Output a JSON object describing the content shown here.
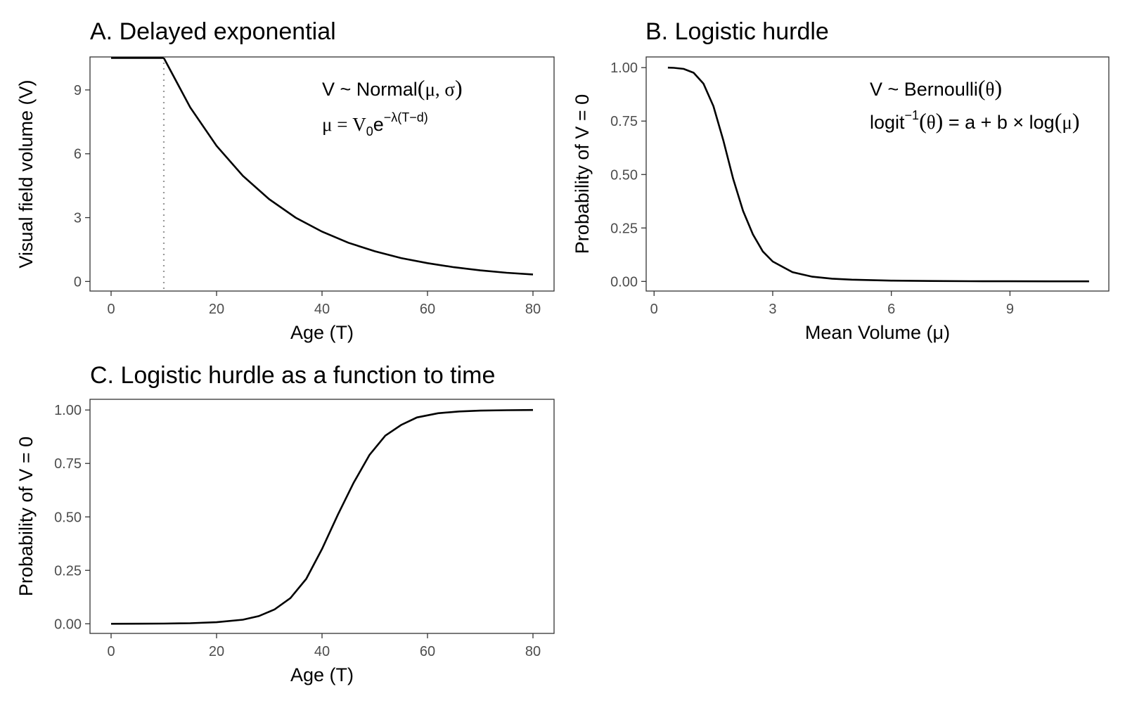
{
  "chart_data": [
    {
      "id": "A",
      "type": "line",
      "title": "A. Delayed exponential",
      "xlabel": "Age (T)",
      "ylabel": "Visual field volume (V)",
      "xlim": [
        -4,
        84
      ],
      "ylim": [
        -0.45,
        10.55
      ],
      "xticks": [
        0,
        20,
        40,
        60,
        80
      ],
      "xtick_labels": [
        "0",
        "20",
        "40",
        "60",
        "80"
      ],
      "yticks": [
        0,
        3,
        6,
        9
      ],
      "ytick_labels": [
        "0",
        "3",
        "6",
        "9"
      ],
      "grid": false,
      "series": [
        {
          "style": "flat",
          "color": "#E06C8A",
          "x": [
            0,
            10
          ],
          "y": [
            10.5,
            10.5
          ]
        },
        {
          "style": "curve",
          "color": "#000000",
          "x": [
            10,
            15,
            20,
            25,
            30,
            35,
            40,
            45,
            50,
            55,
            60,
            65,
            70,
            75,
            80
          ],
          "y": [
            10.5,
            8.18,
            6.37,
            4.96,
            3.86,
            3.0,
            2.34,
            1.82,
            1.42,
            1.1,
            0.86,
            0.67,
            0.52,
            0.41,
            0.33
          ]
        }
      ],
      "reference_line": {
        "orientation": "vertical",
        "x": 10,
        "style": "dotted",
        "color": "#999999"
      },
      "annotation": {
        "line1": {
          "a": "V ~ Normal",
          "b": "μ, σ",
          "open": "(",
          "close": ")"
        },
        "line2": {
          "a": "μ = V",
          "sub": "0",
          "b": "e",
          "sup": "−λ(T−d)"
        }
      }
    },
    {
      "id": "B",
      "type": "line",
      "title": "B. Logistic hurdle",
      "xlabel": "Mean Volume (μ)",
      "ylabel": "Probability of V = 0",
      "xlim": [
        -0.2,
        11.5
      ],
      "ylim": [
        -0.045,
        1.05
      ],
      "xticks": [
        0,
        3,
        6,
        9
      ],
      "xtick_labels": [
        "0",
        "3",
        "6",
        "9"
      ],
      "yticks": [
        0,
        0.25,
        0.5,
        0.75,
        1.0
      ],
      "ytick_labels": [
        "0.00",
        "0.25",
        "0.50",
        "0.75",
        "1.00"
      ],
      "grid": false,
      "series": [
        {
          "style": "curve",
          "color": "#000000",
          "x": [
            0.35,
            0.5,
            0.75,
            1.0,
            1.25,
            1.5,
            1.75,
            2.0,
            2.25,
            2.5,
            2.75,
            3.0,
            3.5,
            4.0,
            4.5,
            5.0,
            6.0,
            7.0,
            8.0,
            9.0,
            10.0,
            11.0
          ],
          "y": [
            1.0,
            0.999,
            0.994,
            0.976,
            0.925,
            0.82,
            0.66,
            0.48,
            0.33,
            0.22,
            0.14,
            0.093,
            0.043,
            0.022,
            0.013,
            0.0082,
            0.0038,
            0.0019,
            0.0011,
            0.0006,
            0.0004,
            0.0003
          ]
        }
      ],
      "annotation": {
        "line1": {
          "a": "V ~ Bernoulli",
          "b": "θ",
          "open": "(",
          "close": ")"
        },
        "line2": {
          "a": "logit",
          "sup": "−1",
          "b": "θ",
          "c": " = a + b × log",
          "d": "μ",
          "open": "(",
          "close": ")"
        }
      }
    },
    {
      "id": "C",
      "type": "line",
      "title": "C. Logistic hurdle as a function to time",
      "xlabel": "Age (T)",
      "ylabel": "Probability of V = 0",
      "xlim": [
        -4,
        84
      ],
      "ylim": [
        -0.045,
        1.05
      ],
      "xticks": [
        0,
        20,
        40,
        60,
        80
      ],
      "xtick_labels": [
        "0",
        "20",
        "40",
        "60",
        "80"
      ],
      "yticks": [
        0,
        0.25,
        0.5,
        0.75,
        1.0
      ],
      "ytick_labels": [
        "0.00",
        "0.25",
        "0.50",
        "0.75",
        "1.00"
      ],
      "grid": false,
      "series": [
        {
          "style": "curve",
          "color": "#000000",
          "x": [
            0,
            5,
            10,
            15,
            20,
            25,
            28,
            31,
            34,
            37,
            40,
            43,
            46,
            49,
            52,
            55,
            58,
            62,
            66,
            70,
            75,
            80
          ],
          "y": [
            0.0002,
            0.0004,
            0.0011,
            0.0028,
            0.0073,
            0.019,
            0.036,
            0.067,
            0.12,
            0.21,
            0.35,
            0.51,
            0.66,
            0.79,
            0.88,
            0.93,
            0.965,
            0.985,
            0.993,
            0.997,
            0.999,
            1.0
          ]
        }
      ]
    }
  ]
}
